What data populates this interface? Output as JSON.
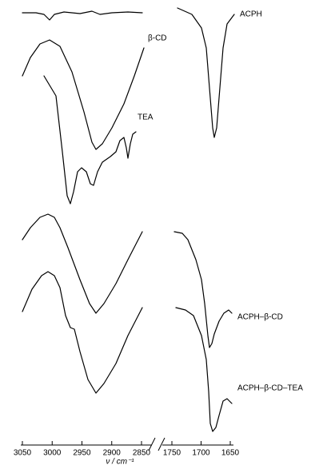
{
  "chart_data": {
    "type": "line",
    "xlabel": "ν / cm⁻¹",
    "labels": [
      "ACPH",
      "β-CD",
      "TEA",
      "ACPH–β-CD",
      "ACPH–β-CD–TEA"
    ],
    "panels": [
      {
        "xlim": [
          3050,
          2850
        ],
        "xticks": [
          3050,
          3000,
          2950,
          2900,
          2850
        ]
      },
      {
        "xlim": [
          1750,
          1650
        ],
        "xticks": [
          1750,
          1700,
          1650
        ]
      }
    ]
  }
}
